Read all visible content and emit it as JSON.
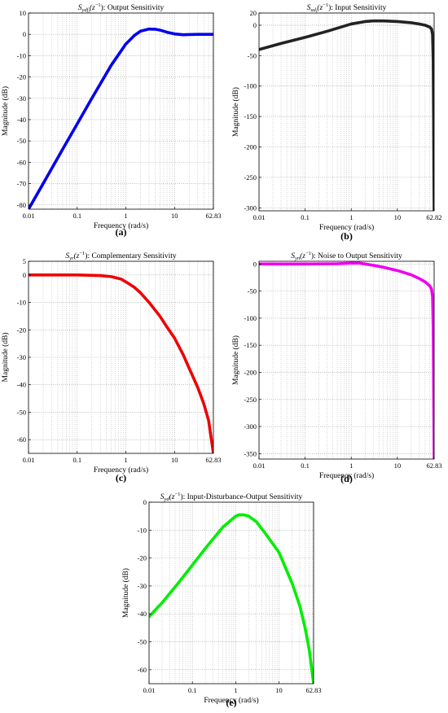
{
  "chart_data": [
    {
      "type": "line",
      "panel_label": "(a)",
      "title_sym": "S",
      "title_sub": "ydf",
      "title_sub2": "i",
      "title_arg": "(z",
      "title_sup": "−1",
      "title_rest": "): Output Sensitivity",
      "xlabel": "Frequency (rad/s)",
      "ylabel": "Magnitude (dB)",
      "xscale": "log",
      "xlim": [
        0.01,
        62.83
      ],
      "ylim": [
        -82,
        10
      ],
      "xticks": [
        0.01,
        0.1,
        1,
        10,
        62.83
      ],
      "xtick_labels": [
        "0.01",
        "0.1",
        "1",
        "10",
        "62.83"
      ],
      "yticks": [
        10,
        0,
        -10,
        -20,
        -30,
        -40,
        -50,
        -60,
        -70,
        -80
      ],
      "ytick_labels": [
        "10",
        "0",
        "-10",
        "-20",
        "-30",
        "-40",
        "-50",
        "-60",
        "-70",
        "-80"
      ],
      "grid": true,
      "color": "#0000ee",
      "series": [
        {
          "x": [
            0.01,
            0.02,
            0.05,
            0.1,
            0.2,
            0.5,
            1,
            1.5,
            2,
            3,
            4,
            5,
            7,
            10,
            15,
            20,
            30,
            62.83
          ],
          "y": [
            -82,
            -70,
            -54,
            -42,
            -30,
            -14.5,
            -4.5,
            -0.5,
            1.5,
            2.5,
            2.4,
            2,
            1,
            0.2,
            -0.2,
            -0.1,
            0,
            0
          ]
        }
      ]
    },
    {
      "type": "line",
      "panel_label": "(b)",
      "title_sym": "S",
      "title_sub": "ud",
      "title_sub2": "i",
      "title_arg": "(z",
      "title_sup": "−1",
      "title_rest": "): Input Sensitivity",
      "xlabel": "Frequency (rad/s)",
      "ylabel": "Magnitude (dB)",
      "xscale": "log",
      "xlim": [
        0.01,
        62.83
      ],
      "ylim": [
        -305,
        20
      ],
      "xticks": [
        0.01,
        0.1,
        1,
        10,
        62.82
      ],
      "xtick_labels": [
        "0.01",
        "0.1",
        "1",
        "10",
        "62.82"
      ],
      "yticks": [
        20,
        0,
        -50,
        -100,
        -150,
        -200,
        -250,
        -300
      ],
      "ytick_labels": [
        "20",
        "0",
        "-50",
        "-100",
        "-150",
        "-200",
        "-250",
        "-300"
      ],
      "grid": true,
      "color": "#222222",
      "series": [
        {
          "x": [
            0.01,
            0.03,
            0.1,
            0.3,
            1,
            2,
            3,
            5,
            10,
            20,
            30,
            40,
            50,
            55,
            58,
            60,
            61,
            62,
            62.83
          ],
          "y": [
            -40,
            -30,
            -20,
            -10,
            2,
            6,
            7,
            7,
            6,
            4,
            2,
            0,
            -3,
            -6,
            -15,
            -60,
            -140,
            -240,
            -305
          ]
        }
      ]
    },
    {
      "type": "line",
      "panel_label": "(c)",
      "title_sym": "S",
      "title_sub": "yr",
      "title_sub2": "",
      "title_arg": "(z",
      "title_sup": "−1",
      "title_rest": "): Complementary Sensitivity",
      "xlabel": "Frequency (rad/s)",
      "ylabel": "Magnitude (dB)",
      "xscale": "log",
      "xlim": [
        0.01,
        62.83
      ],
      "ylim": [
        -65,
        5
      ],
      "xticks": [
        0.01,
        0.1,
        1,
        10,
        62.83
      ],
      "xtick_labels": [
        "0.01",
        "0.1",
        "1",
        "10",
        "62.83"
      ],
      "yticks": [
        5,
        0,
        -10,
        -20,
        -30,
        -40,
        -50,
        -60
      ],
      "ytick_labels": [
        "5",
        "0",
        "-10",
        "-20",
        "-30",
        "-40",
        "-50",
        "-60"
      ],
      "grid": true,
      "color": "#ee0000",
      "series": [
        {
          "x": [
            0.01,
            0.1,
            0.3,
            0.5,
            0.8,
            1,
            1.5,
            2,
            3,
            5,
            7,
            10,
            15,
            20,
            30,
            40,
            50,
            62.83
          ],
          "y": [
            0,
            0,
            -0.2,
            -0.6,
            -1.5,
            -2.5,
            -4.5,
            -6.5,
            -10,
            -15,
            -19,
            -23,
            -29,
            -34,
            -41,
            -47,
            -53,
            -65
          ]
        }
      ]
    },
    {
      "type": "line",
      "panel_label": "(d)",
      "title_sym": "S",
      "title_sub": "yn",
      "title_sub2": "",
      "title_arg": "(z",
      "title_sup": "−1",
      "title_rest": "): Noise to Output Sensitivity",
      "xlabel": "Frequency (rad/s)",
      "ylabel": "Magnitude (dB)",
      "xscale": "log",
      "xlim": [
        0.01,
        62.83
      ],
      "ylim": [
        -360,
        5
      ],
      "xticks": [
        0.01,
        0.1,
        1,
        10,
        62.83
      ],
      "xtick_labels": [
        "0.01",
        "0.1",
        "1",
        "10",
        "62.83"
      ],
      "yticks": [
        0,
        -50,
        -100,
        -150,
        -200,
        -250,
        -300,
        -350
      ],
      "ytick_labels": [
        "0",
        "-50",
        "-100",
        "-150",
        "-200",
        "-250",
        "-300",
        "-350"
      ],
      "grid": true,
      "color": "#ee00ee",
      "series": [
        {
          "x": [
            0.01,
            0.1,
            0.5,
            1,
            1.5,
            2,
            3,
            5,
            10,
            20,
            30,
            40,
            50,
            55,
            58,
            60,
            61,
            62,
            62.83
          ],
          "y": [
            0,
            0,
            0.5,
            1.5,
            1.5,
            0,
            -2.5,
            -6,
            -12,
            -20,
            -27,
            -33,
            -40,
            -46,
            -60,
            -120,
            -200,
            -290,
            -360
          ]
        }
      ]
    },
    {
      "type": "line",
      "panel_label": "(e)",
      "title_sym": "S",
      "title_sub": "yd",
      "title_sub2": "",
      "title_arg": "(z",
      "title_sup": "−1",
      "title_rest": "): Input-Disturbance-Output Sensitivity",
      "xlabel": "Frequency (rad/s)",
      "ylabel": "Magnitude (dB)",
      "xscale": "log",
      "xlim": [
        0.01,
        62.83
      ],
      "ylim": [
        -65,
        0
      ],
      "xticks": [
        0.01,
        0.1,
        1,
        10,
        62.83
      ],
      "xtick_labels": [
        "0.01",
        "0.1",
        "1",
        "10",
        "62.83"
      ],
      "yticks": [
        0,
        -10,
        -20,
        -30,
        -40,
        -50,
        -60
      ],
      "ytick_labels": [
        "0",
        "-10",
        "-20",
        "-30",
        "-40",
        "-50",
        "-60"
      ],
      "grid": true,
      "color": "#00ee00",
      "series": [
        {
          "x": [
            0.01,
            0.02,
            0.05,
            0.1,
            0.2,
            0.5,
            1,
            1.2,
            1.5,
            2,
            3,
            5,
            10,
            20,
            30,
            40,
            50,
            62.83
          ],
          "y": [
            -41,
            -36,
            -28.5,
            -22.5,
            -16.5,
            -9,
            -5,
            -4.5,
            -4.5,
            -5,
            -7,
            -11.5,
            -18,
            -29,
            -37,
            -45,
            -53,
            -65
          ]
        }
      ]
    }
  ]
}
